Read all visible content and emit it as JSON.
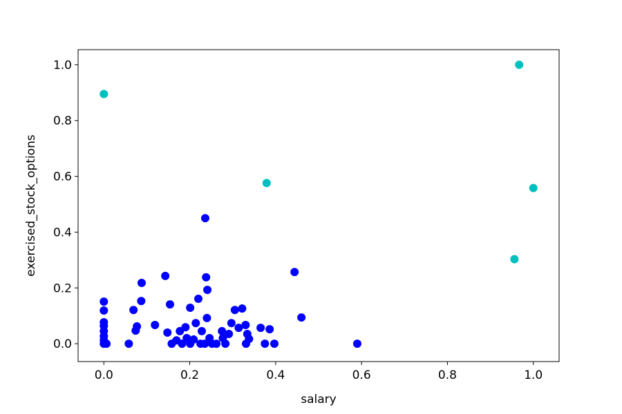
{
  "chart_data": {
    "type": "scatter",
    "x_label": "salary",
    "y_label": "exercised_stock_options",
    "xlim": [
      -0.06,
      1.06
    ],
    "ylim": [
      -0.064,
      1.054
    ],
    "xticks": [
      {
        "value": 0,
        "label": "0.0"
      },
      0.2,
      0.4,
      0.6,
      0.8,
      {
        "value": 1,
        "label": "1.0"
      }
    ],
    "yticks": [
      {
        "value": 0,
        "label": "0.0"
      },
      0.2,
      0.4,
      0.6,
      0.8,
      {
        "value": 1,
        "label": "1.0"
      }
    ],
    "grid": false,
    "series": [
      {
        "color": "#0000ff",
        "x": [
          0,
          0,
          0,
          0,
          0,
          0,
          0,
          0,
          0.006,
          0.058,
          0.069,
          0.074,
          0.077,
          0.087,
          0.088,
          0.119,
          0.143,
          0.148,
          0.154,
          0.158,
          0.169,
          0.177,
          0.182,
          0.19,
          0.193,
          0.201,
          0.201,
          0.209,
          0.214,
          0.22,
          0.225,
          0.228,
          0.236,
          0.238,
          0.24,
          0.241,
          0.235,
          0.246,
          0.252,
          0.262,
          0.275,
          0.277,
          0.283,
          0.291,
          0.297,
          0.305,
          0.314,
          0.322,
          0.33,
          0.334,
          0.331,
          0.338,
          0.365,
          0.375,
          0.386,
          0.397,
          0.444,
          0.46,
          0.59
        ],
        "y": [
          0.151,
          0.119,
          0.077,
          0.064,
          0.045,
          0.027,
          0.012,
          0,
          0,
          0,
          0.121,
          0.047,
          0.062,
          0.153,
          0.218,
          0.067,
          0.243,
          0.04,
          0.141,
          0,
          0.012,
          0.045,
          0,
          0.059,
          0.02,
          0,
          0.129,
          0.015,
          0.074,
          0.161,
          0,
          0.045,
          0.45,
          0.238,
          0.092,
          0.193,
          0,
          0.02,
          0,
          0,
          0.045,
          0.02,
          0,
          0.035,
          0.074,
          0.121,
          0.057,
          0.126,
          0.067,
          0.035,
          0,
          0.017,
          0.057,
          0,
          0.052,
          0,
          0.257,
          0.094,
          0
        ]
      },
      {
        "color": "#00bfbf",
        "x": [
          0,
          0.967,
          0.379,
          1,
          0.956
        ],
        "y": [
          0.895,
          1,
          0.576,
          0.558,
          0.303
        ]
      }
    ]
  }
}
